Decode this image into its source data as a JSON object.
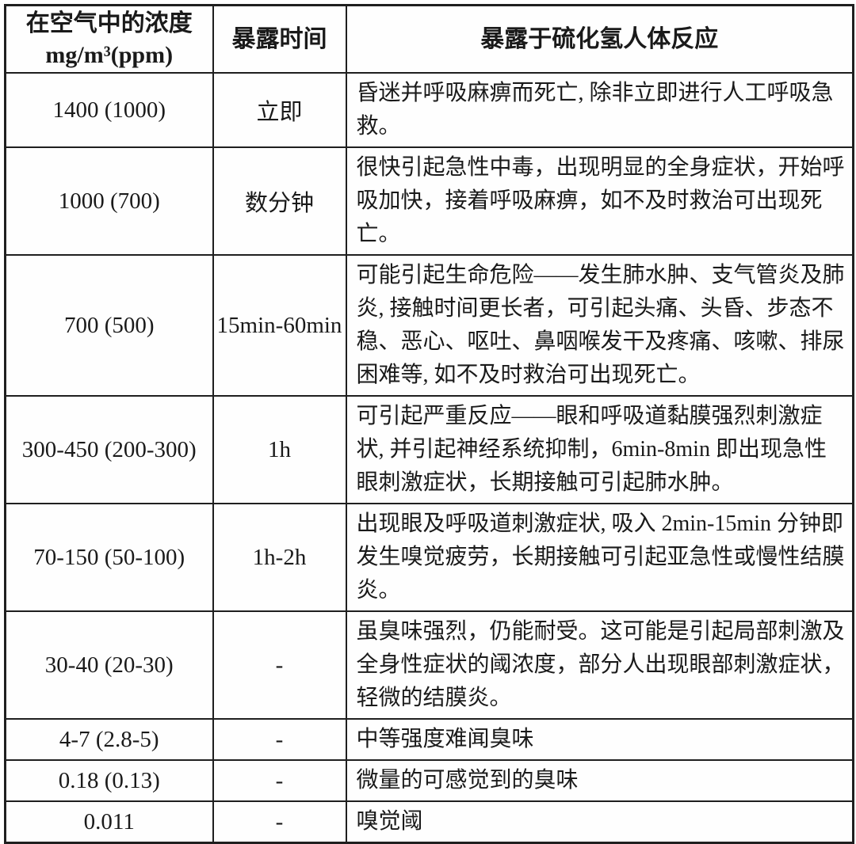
{
  "page": {
    "background_color": "#ffffff",
    "text_color": "#1a1a1a",
    "border_color": "#1f1f1f"
  },
  "table": {
    "header": {
      "concentration_line1": "在空气中的浓度",
      "concentration_line2": "mg/m³(ppm)",
      "time": "暴露时间",
      "effect": "暴露于硫化氢人体反应"
    },
    "rows": [
      {
        "concentration": "1400 (1000)",
        "time": "立即",
        "effect": "昏迷并呼吸麻痹而死亡, 除非立即进行人工呼吸急救。"
      },
      {
        "concentration": "1000 (700)",
        "time": "数分钟",
        "effect": "很快引起急性中毒，出现明显的全身症状，开始呼吸加快，接着呼吸麻痹，如不及时救治可出现死亡。"
      },
      {
        "concentration": "700 (500)",
        "time": "15min-60min",
        "effect": "可能引起生命危险——发生肺水肿、支气管炎及肺炎, 接触时间更长者，可引起头痛、头昏、步态不稳、恶心、呕吐、鼻咽喉发干及疼痛、咳嗽、排尿困难等, 如不及时救治可出现死亡。"
      },
      {
        "concentration": "300-450 (200-300)",
        "time": "1h",
        "effect": "可引起严重反应——眼和呼吸道黏膜强烈刺激症状, 并引起神经系统抑制，6min-8min 即出现急性眼刺激症状，长期接触可引起肺水肿。"
      },
      {
        "concentration": "70-150 (50-100)",
        "time": "1h-2h",
        "effect": "出现眼及呼吸道刺激症状, 吸入 2min-15min 分钟即发生嗅觉疲劳，长期接触可引起亚急性或慢性结膜炎。"
      },
      {
        "concentration": "30-40 (20-30)",
        "time": "-",
        "effect": "虽臭味强烈，仍能耐受。这可能是引起局部刺激及全身性症状的阈浓度，部分人出现眼部刺激症状，轻微的结膜炎。"
      },
      {
        "concentration": "4-7 (2.8-5)",
        "time": "-",
        "effect": "中等强度难闻臭味"
      },
      {
        "concentration": "0.18 (0.13)",
        "time": "-",
        "effect": "微量的可感觉到的臭味"
      },
      {
        "concentration": "0.011",
        "time": "-",
        "effect": "嗅觉阈"
      }
    ]
  }
}
